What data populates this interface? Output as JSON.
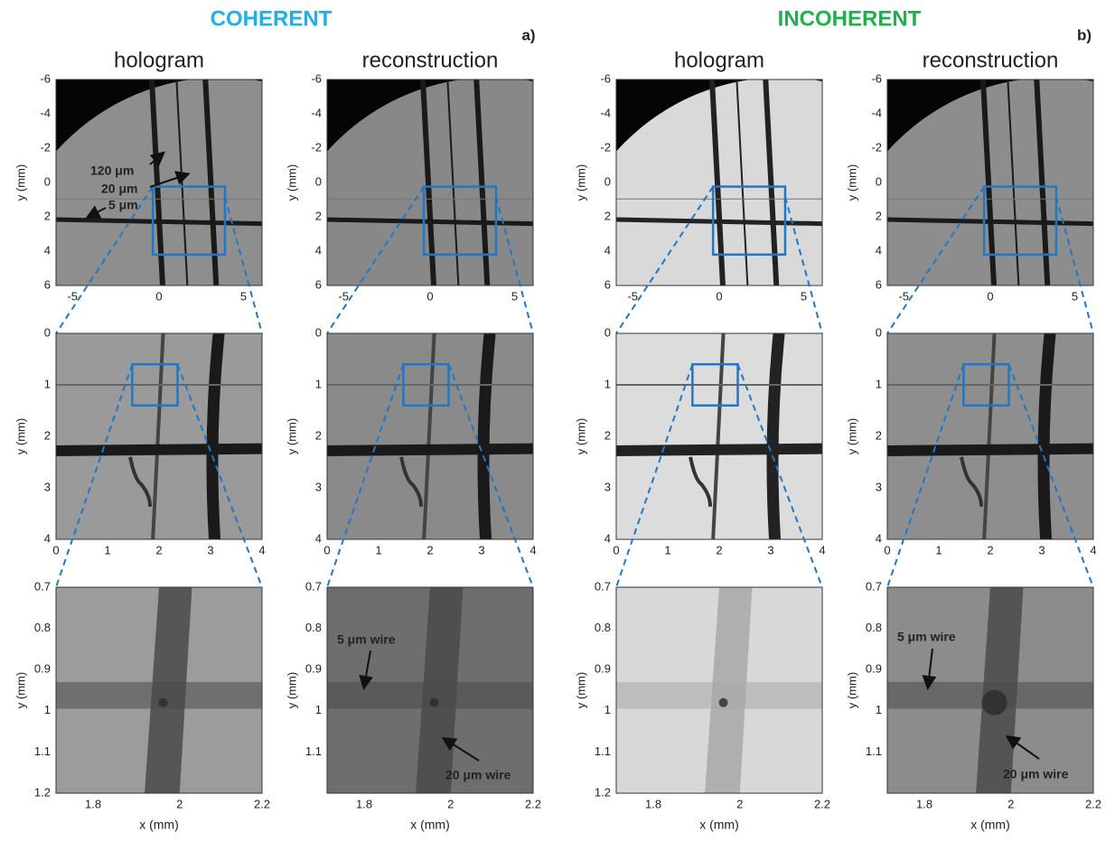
{
  "groups": [
    {
      "title": "COHERENT",
      "label": "a)",
      "columns": [
        "hologram",
        "reconstruction"
      ]
    },
    {
      "title": "INCOHERENT",
      "label": "b)",
      "columns": [
        "hologram",
        "reconstruction"
      ]
    }
  ],
  "rows": [
    {
      "ylabel": "y (mm)",
      "xticks": [
        -5,
        0,
        5
      ],
      "yticks": [
        -6,
        -4,
        -2,
        0,
        2,
        4,
        6
      ]
    },
    {
      "ylabel": "y (mm)",
      "xticks": [
        0,
        1,
        2,
        3,
        4
      ],
      "yticks": [
        0,
        1,
        2,
        3,
        4
      ]
    },
    {
      "ylabel": "y (mm)",
      "xlabel": "x (mm)",
      "xticks": [
        1.8,
        2,
        2.2
      ],
      "yticks": [
        0.7,
        0.8,
        0.9,
        1,
        1.1,
        1.2
      ],
      "yticks_reconstruction": [
        0.7,
        0.8,
        0.9,
        1,
        1.1
      ]
    }
  ],
  "annotations": {
    "coherent_hologram": [
      "120 μm",
      "20 μm",
      "5 μm"
    ],
    "coherent_reconstruction": [
      "5 μm wire",
      "20 μm wire"
    ],
    "incoherent_reconstruction": [
      "5 μm wire",
      "20 μm wire"
    ]
  }
}
